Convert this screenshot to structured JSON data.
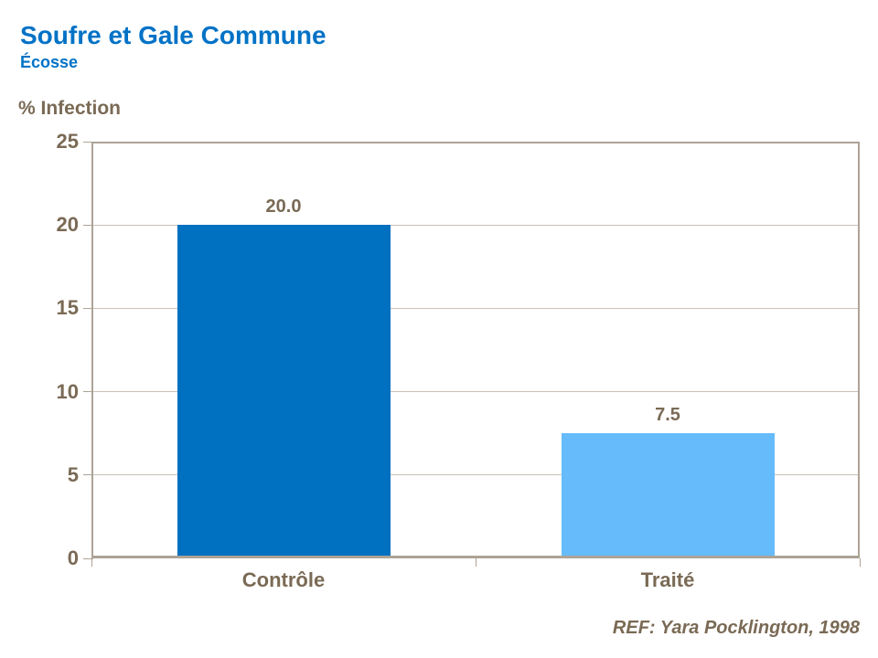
{
  "header": {
    "title": "Soufre et Gale Commune",
    "subtitle": "Écosse"
  },
  "footer": {
    "reference": "REF: Yara Pocklington, 1998"
  },
  "chart_data": {
    "type": "bar",
    "title": "Soufre et Gale Commune",
    "subtitle": "Écosse",
    "categories": [
      "Contrôle",
      "Traité"
    ],
    "series": [
      {
        "name": "% Infection",
        "values": [
          20.0,
          7.5
        ]
      }
    ],
    "values": [
      20.0,
      7.5
    ],
    "value_labels": [
      "20.0",
      "7.5"
    ],
    "xlabel": "",
    "ylabel": "% Infection",
    "ylim": [
      0,
      25
    ],
    "yticks": [
      0,
      5,
      10,
      15,
      20,
      25
    ],
    "grid": true,
    "legend": false,
    "annotation": "REF: Yara Pocklington, 1998",
    "bar_colors": [
      "#0070C0",
      "#66BBFA"
    ]
  },
  "colors": {
    "title_blue": "#0072C6",
    "text_brown": "#7A6A55",
    "axis_line": "#ADA396",
    "gridline": "#C9C1B7",
    "bar_control": "#0070C0",
    "bar_treated": "#66BBFA",
    "background": "#FFFFFF"
  }
}
